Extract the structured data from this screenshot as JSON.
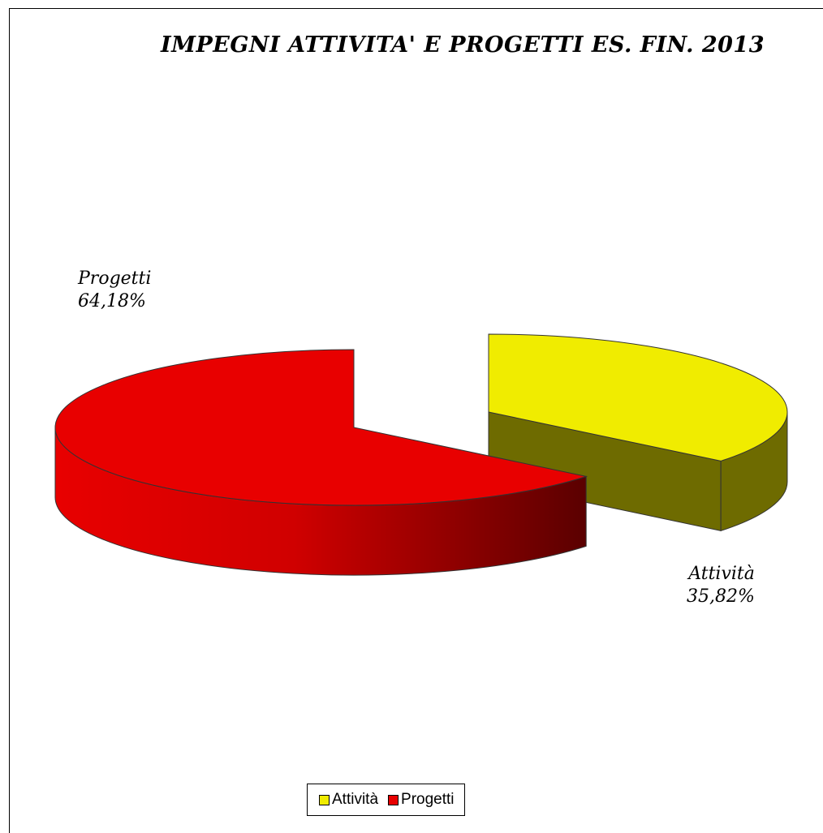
{
  "chart_data": {
    "type": "pie",
    "title": "IMPEGNI ATTIVITA' E PROGETTI ES. FIN. 2013",
    "categories": [
      "Attività",
      "Progetti"
    ],
    "values": [
      35.82,
      64.18
    ],
    "value_labels": [
      "35,82%",
      "64,18%"
    ],
    "colors": [
      "#f0ec00",
      "#e80000"
    ],
    "side_colors": [
      "#6e6b00",
      "#b00000"
    ],
    "exploded": true,
    "style": "3d",
    "legend_position": "bottom"
  }
}
